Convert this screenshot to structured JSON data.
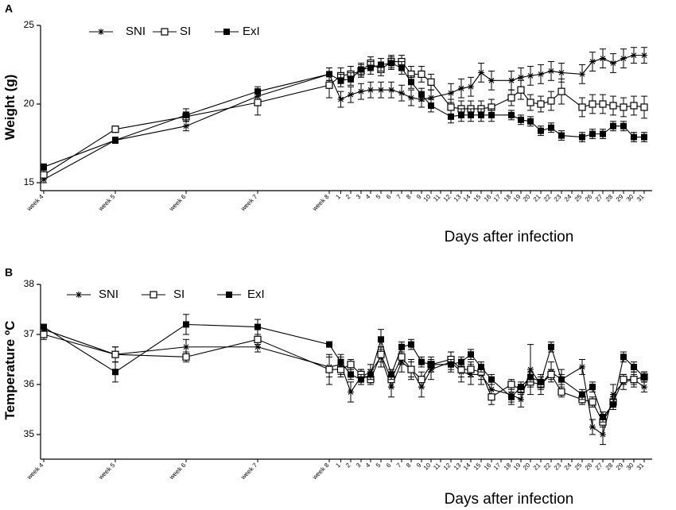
{
  "chart_data": [
    {
      "type": "line",
      "panel": "A",
      "ylabel": "Weight (g)",
      "xlabel": "Days after infection",
      "ylim": [
        15,
        25
      ],
      "yticks": [
        15,
        20,
        25
      ],
      "categories": [
        "week 4",
        "week 5",
        "week 6",
        "week 7",
        "week 8",
        "1",
        "2",
        "3",
        "4",
        "5",
        "6",
        "7",
        "8",
        "9",
        "10",
        "11",
        "12",
        "13",
        "14",
        "15",
        "16",
        "17",
        "18",
        "19",
        "20",
        "21",
        "22",
        "23",
        "24",
        "25",
        "26",
        "27",
        "28",
        "29",
        "30",
        "31"
      ],
      "legend": [
        "SNI",
        "SI",
        "ExI"
      ],
      "series": [
        {
          "name": "SNI",
          "marker": "star",
          "values": [
            15.2,
            17.7,
            18.6,
            20.5,
            21.9,
            20.3,
            20.6,
            20.8,
            20.9,
            20.9,
            20.9,
            20.7,
            20.4,
            20.3,
            20.4,
            null,
            20.7,
            21.0,
            21.1,
            22.0,
            21.5,
            null,
            21.5,
            21.7,
            21.8,
            21.9,
            22.1,
            22.0,
            null,
            21.9,
            22.7,
            22.9,
            22.6,
            22.9,
            23.1,
            23.1
          ],
          "errors": [
            0.2,
            0.2,
            0.3,
            0.3,
            0.4,
            0.5,
            0.5,
            0.5,
            0.5,
            0.5,
            0.5,
            0.5,
            0.5,
            0.5,
            0.5,
            null,
            0.6,
            0.6,
            0.6,
            0.6,
            0.6,
            null,
            0.6,
            0.6,
            0.6,
            0.6,
            0.6,
            0.6,
            null,
            0.6,
            0.6,
            0.6,
            0.6,
            0.6,
            0.5,
            0.5
          ]
        },
        {
          "name": "SI",
          "marker": "open-square",
          "values": [
            15.5,
            18.4,
            19.2,
            20.1,
            21.2,
            21.8,
            21.9,
            22.1,
            22.6,
            22.2,
            22.7,
            22.7,
            21.9,
            21.9,
            21.4,
            null,
            19.8,
            19.7,
            19.7,
            19.7,
            19.8,
            null,
            20.4,
            20.9,
            20.1,
            20.0,
            20.2,
            20.8,
            null,
            19.8,
            20.0,
            20.0,
            19.9,
            19.8,
            19.9,
            19.8
          ],
          "errors": [
            0.3,
            0.2,
            0.3,
            0.8,
            0.8,
            0.5,
            0.5,
            0.4,
            0.4,
            0.4,
            0.4,
            0.4,
            0.5,
            0.5,
            0.5,
            null,
            0.5,
            0.5,
            0.5,
            0.5,
            0.5,
            null,
            0.5,
            0.6,
            0.5,
            0.5,
            0.6,
            0.8,
            null,
            0.6,
            0.6,
            0.6,
            0.6,
            0.6,
            0.6,
            0.7
          ]
        },
        {
          "name": "ExI",
          "marker": "filled-square",
          "values": [
            16.0,
            17.7,
            19.3,
            20.8,
            21.9,
            21.5,
            21.6,
            22.2,
            22.3,
            22.5,
            22.6,
            22.3,
            21.4,
            20.6,
            19.9,
            null,
            19.2,
            19.3,
            19.3,
            19.3,
            19.3,
            null,
            19.3,
            19.0,
            18.9,
            18.3,
            18.5,
            18.0,
            null,
            17.9,
            18.1,
            18.1,
            18.6,
            18.6,
            17.9,
            17.9
          ],
          "errors": [
            0.2,
            0.2,
            0.4,
            0.3,
            0.4,
            0.4,
            0.4,
            0.4,
            0.4,
            0.4,
            0.4,
            0.4,
            0.4,
            0.4,
            0.4,
            null,
            0.4,
            0.4,
            0.4,
            0.4,
            0.4,
            null,
            0.3,
            0.3,
            0.3,
            0.3,
            0.3,
            0.3,
            null,
            0.3,
            0.3,
            0.3,
            0.3,
            0.3,
            0.3,
            0.3
          ]
        }
      ]
    },
    {
      "type": "line",
      "panel": "B",
      "ylabel": "Temperature ºC",
      "xlabel": "Days after infection",
      "ylim": [
        34.6,
        38
      ],
      "yticks": [
        35,
        36,
        37,
        38
      ],
      "categories": [
        "week 4",
        "week 5",
        "week 6",
        "week 7",
        "week 8",
        "1",
        "2",
        "3",
        "4",
        "5",
        "6",
        "7",
        "8",
        "9",
        "10",
        "11",
        "12",
        "13",
        "14",
        "15",
        "16",
        "17",
        "18",
        "19",
        "20",
        "21",
        "22",
        "23",
        "24",
        "25",
        "26",
        "27",
        "28",
        "29",
        "30",
        "31"
      ],
      "legend": [
        "SNI",
        "SI",
        "ExI"
      ],
      "series": [
        {
          "name": "SNI",
          "marker": "star",
          "values": [
            37.1,
            36.6,
            36.75,
            36.75,
            36.35,
            36.4,
            35.85,
            36.15,
            36.25,
            36.55,
            35.95,
            36.45,
            36.3,
            35.95,
            36.3,
            null,
            36.45,
            36.25,
            36.2,
            36.2,
            35.9,
            null,
            35.8,
            35.7,
            36.3,
            36.0,
            36.25,
            36.1,
            null,
            36.35,
            35.15,
            35.0,
            35.8,
            36.05,
            36.1,
            35.95
          ],
          "errors": [
            0.1,
            0.15,
            0.15,
            0.1,
            0.2,
            0.2,
            0.2,
            0.15,
            0.15,
            0.2,
            0.2,
            0.2,
            0.2,
            0.2,
            0.2,
            null,
            0.2,
            0.2,
            0.2,
            0.2,
            0.2,
            null,
            0.2,
            0.15,
            0.5,
            0.2,
            0.2,
            0.2,
            null,
            0.15,
            0.15,
            0.2,
            0.2,
            0.15,
            0.15,
            0.1
          ]
        },
        {
          "name": "SI",
          "marker": "open-square",
          "values": [
            37.0,
            36.6,
            36.55,
            36.9,
            36.3,
            36.3,
            36.4,
            36.2,
            36.1,
            36.6,
            36.1,
            36.55,
            36.3,
            36.1,
            36.4,
            null,
            36.5,
            36.3,
            36.3,
            36.25,
            35.75,
            null,
            36.0,
            35.9,
            36.05,
            36.0,
            36.2,
            35.85,
            null,
            35.7,
            35.65,
            35.25,
            35.65,
            36.1,
            36.1,
            36.15
          ],
          "errors": [
            0.1,
            0.15,
            0.1,
            0.1,
            0.3,
            0.15,
            0.1,
            0.1,
            0.1,
            0.15,
            0.15,
            0.15,
            0.15,
            0.15,
            0.15,
            null,
            0.15,
            0.15,
            0.15,
            0.15,
            0.15,
            null,
            0.1,
            0.1,
            0.1,
            0.1,
            0.1,
            0.1,
            null,
            0.1,
            0.1,
            0.1,
            0.1,
            0.1,
            0.1,
            0.1
          ]
        },
        {
          "name": "ExI",
          "marker": "filled-square",
          "values": [
            37.15,
            36.25,
            37.2,
            37.15,
            36.8,
            36.45,
            36.2,
            36.1,
            36.2,
            36.9,
            36.2,
            36.75,
            36.8,
            36.45,
            36.4,
            null,
            36.4,
            36.45,
            36.6,
            36.35,
            36.1,
            null,
            35.75,
            35.95,
            36.15,
            36.05,
            36.75,
            36.1,
            null,
            35.8,
            35.95,
            35.35,
            35.6,
            36.55,
            36.35,
            36.15
          ],
          "errors": [
            0.05,
            0.2,
            0.2,
            0.15,
            0.05,
            0.1,
            0.1,
            0.1,
            0.1,
            0.2,
            0.1,
            0.1,
            0.1,
            0.1,
            0.1,
            null,
            0.1,
            0.1,
            0.1,
            0.1,
            0.1,
            null,
            0.1,
            0.1,
            0.1,
            0.1,
            0.1,
            0.1,
            null,
            0.1,
            0.1,
            0.1,
            0.1,
            0.1,
            0.1,
            0.1
          ]
        }
      ]
    }
  ]
}
